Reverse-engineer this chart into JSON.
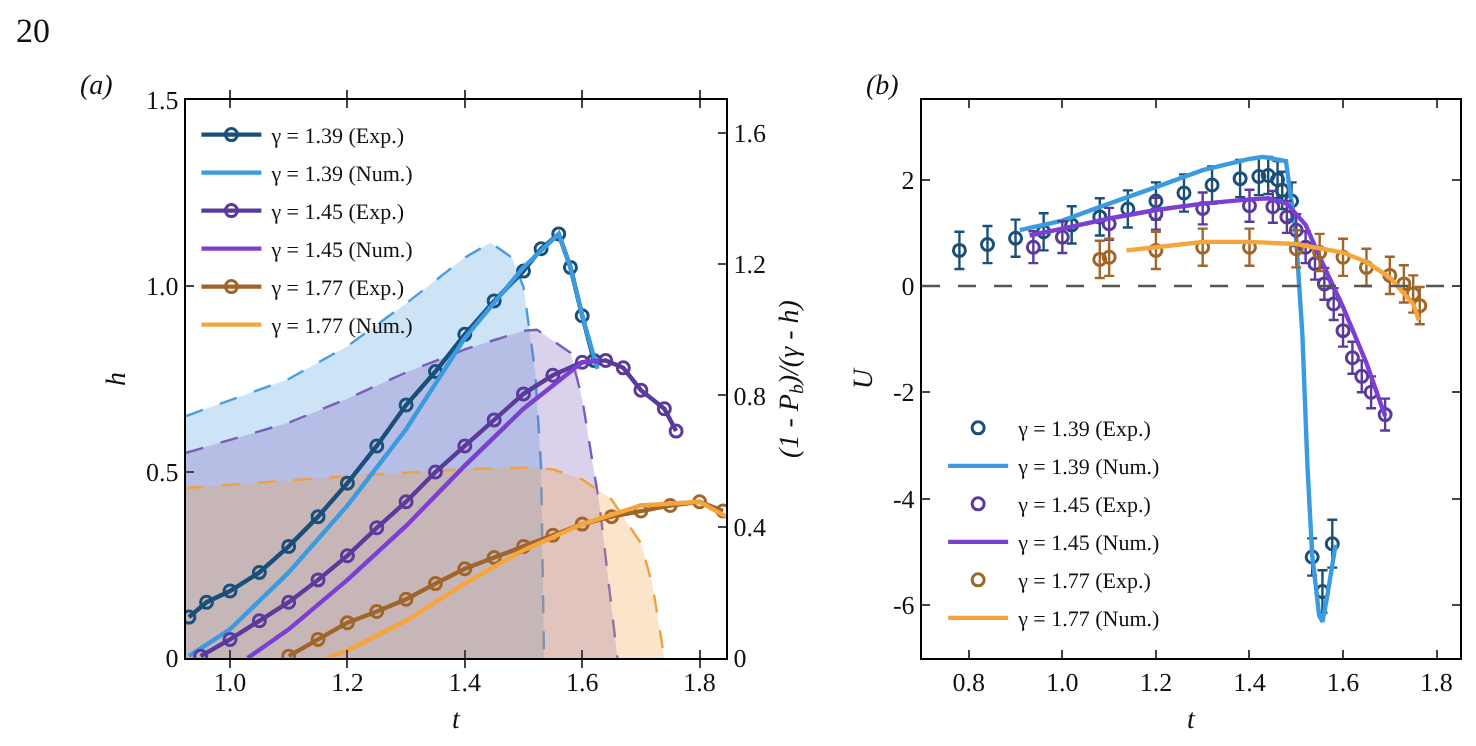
{
  "chart_data": [
    {
      "type": "line",
      "title": "(a)",
      "xlabel": "t",
      "ylabel": "h",
      "y2label": "(1 - P$_{b}$)/(γ - h)",
      "annotations": [
        "20"
      ],
      "legend": "top left",
      "grid": false,
      "xlim": [
        0.925,
        1.845
      ],
      "xticks": [
        {
          "value": 1,
          "label": "1.0"
        },
        1.2,
        1.4,
        1.6,
        1.8
      ],
      "ylim": [
        0,
        1.5
      ],
      "yticks": [
        0,
        0.5,
        {
          "value": 1,
          "label": "1.0"
        },
        1.5
      ],
      "y2lim": [
        0,
        1.7
      ],
      "y2ticks": [
        0,
        0.4,
        0.8,
        1.2,
        1.6
      ],
      "series": [
        {
          "type": "area",
          "axis": "y2",
          "line_style": "dashed",
          "marker": "none",
          "color": "#4a9de0",
          "x": [
            0.925,
            1.1,
            1.2,
            1.3,
            1.4,
            1.444,
            1.48,
            1.5,
            1.52,
            1.53,
            1.535
          ],
          "values": [
            0.737,
            0.85,
            0.95,
            1.08,
            1.22,
            1.265,
            1.22,
            1.13,
            0.87,
            0.58,
            0
          ]
        },
        {
          "type": "area",
          "axis": "y2",
          "line_style": "dashed",
          "marker": "none",
          "color": "#7a5cc0",
          "x": [
            0.925,
            1.1,
            1.2,
            1.3,
            1.4,
            1.5,
            1.523,
            1.58,
            1.6,
            1.63,
            1.66
          ],
          "values": [
            0.625,
            0.717,
            0.79,
            0.87,
            0.94,
            0.997,
            1.0,
            0.93,
            0.79,
            0.46,
            0
          ]
        },
        {
          "type": "area",
          "axis": "y2",
          "line_style": "dashed",
          "marker": "none",
          "color": "#f0a040",
          "x": [
            0.925,
            1.2,
            1.4,
            1.5,
            1.55,
            1.6,
            1.65,
            1.7,
            1.72,
            1.74
          ],
          "values": [
            0.518,
            0.554,
            0.575,
            0.58,
            0.575,
            0.544,
            0.483,
            0.35,
            0.22,
            0
          ]
        },
        {
          "name": "γ = 1.39 (Exp.)",
          "marker": "circle",
          "line_style": "solid",
          "color": "#1a4f7a",
          "x": [
            0.93,
            0.96,
            1.0,
            1.05,
            1.1,
            1.15,
            1.2,
            1.25,
            1.3,
            1.35,
            1.4,
            1.45,
            1.5,
            1.53,
            1.56,
            1.58,
            1.6,
            1.62
          ],
          "values": [
            0.11,
            0.15,
            0.18,
            0.23,
            0.3,
            0.38,
            0.47,
            0.57,
            0.68,
            0.77,
            0.87,
            0.96,
            1.04,
            1.1,
            1.14,
            1.05,
            0.92,
            0.8
          ]
        },
        {
          "name": "γ = 1.39 (Num.)",
          "marker": "none",
          "line_style": "solid",
          "color": "#3a9be0",
          "x": [
            0.93,
            1.0,
            1.1,
            1.2,
            1.3,
            1.4,
            1.5,
            1.56,
            1.58,
            1.6,
            1.626
          ],
          "values": [
            0.005,
            0.077,
            0.23,
            0.41,
            0.615,
            0.86,
            1.05,
            1.14,
            1.05,
            0.92,
            0.777
          ]
        },
        {
          "name": "γ = 1.45 (Exp.)",
          "marker": "circle",
          "line_style": "solid",
          "color": "#5a3a9a",
          "x": [
            0.95,
            1.0,
            1.05,
            1.1,
            1.15,
            1.2,
            1.25,
            1.3,
            1.35,
            1.4,
            1.45,
            1.5,
            1.55,
            1.6,
            1.64,
            1.67,
            1.7,
            1.74,
            1.76
          ],
          "values": [
            0.005,
            0.05,
            0.1,
            0.15,
            0.21,
            0.275,
            0.35,
            0.42,
            0.5,
            0.57,
            0.64,
            0.71,
            0.76,
            0.795,
            0.8,
            0.78,
            0.72,
            0.67,
            0.61
          ]
        },
        {
          "name": "γ = 1.45 (Num.)",
          "marker": "none",
          "line_style": "solid",
          "color": "#7b3fd4",
          "x": [
            1.03,
            1.1,
            1.2,
            1.3,
            1.4,
            1.5,
            1.6,
            1.63
          ],
          "values": [
            0,
            0.077,
            0.21,
            0.355,
            0.517,
            0.67,
            0.795,
            0.8
          ]
        },
        {
          "name": "γ = 1.77 (Exp.)",
          "marker": "circle",
          "line_style": "solid",
          "color": "#a0652a",
          "x": [
            1.1,
            1.15,
            1.2,
            1.25,
            1.3,
            1.35,
            1.4,
            1.45,
            1.5,
            1.55,
            1.6,
            1.65,
            1.7,
            1.75,
            1.8,
            1.84
          ],
          "values": [
            0.005,
            0.05,
            0.095,
            0.125,
            0.158,
            0.2,
            0.24,
            0.27,
            0.3,
            0.33,
            0.36,
            0.38,
            0.395,
            0.41,
            0.42,
            0.395
          ]
        },
        {
          "name": "γ = 1.77 (Num.)",
          "marker": "none",
          "line_style": "solid",
          "color": "#f5a53a",
          "x": [
            1.165,
            1.2,
            1.3,
            1.4,
            1.5,
            1.6,
            1.7,
            1.8,
            1.845
          ],
          "values": [
            0,
            0.02,
            0.1,
            0.2,
            0.29,
            0.36,
            0.41,
            0.42,
            0.38
          ]
        }
      ]
    },
    {
      "type": "line",
      "title": "(b)",
      "xlabel": "t",
      "ylabel": "U",
      "legend": "bottom left",
      "grid": false,
      "xlim": [
        0.7,
        1.85
      ],
      "xticks": [
        0.8,
        {
          "value": 1,
          "label": "1.0"
        },
        1.2,
        1.4,
        1.6,
        1.8
      ],
      "ylim": [
        -7,
        3.5
      ],
      "yticks": [
        -6,
        -4,
        -2,
        0,
        2
      ],
      "ref_lines": [
        {
          "axis": "y",
          "value": 0,
          "color": "#555555",
          "line_style": "dashed"
        }
      ],
      "series": [
        {
          "type": "scatter",
          "name": "γ = 1.39 (Exp.)",
          "marker": "circle",
          "color": "#1a4f7a",
          "x": [
            0.78,
            0.84,
            0.9,
            0.96,
            1.02,
            1.08,
            1.14,
            1.2,
            1.26,
            1.32,
            1.38,
            1.42,
            1.44,
            1.46,
            1.47,
            1.49,
            1.534,
            1.556,
            1.577
          ],
          "values": [
            0.67,
            0.78,
            0.9,
            1.02,
            1.15,
            1.3,
            1.45,
            1.6,
            1.75,
            1.9,
            2.02,
            2.06,
            2.08,
            2.0,
            1.8,
            1.6,
            -5.1,
            -5.75,
            -4.85
          ],
          "errors": [
            0.35,
            0.35,
            0.35,
            0.35,
            0.35,
            0.35,
            0.35,
            0.35,
            0.35,
            0.35,
            0.35,
            0.35,
            0.35,
            0.35,
            0.35,
            0.35,
            0.35,
            0.4,
            0.45
          ]
        },
        {
          "name": "γ = 1.39 (Num.)",
          "marker": "none",
          "line_style": "solid",
          "color": "#3a9be0",
          "x": [
            0.909,
            1.0,
            1.1,
            1.2,
            1.3,
            1.4,
            1.428,
            1.478,
            1.499,
            1.513,
            1.524,
            1.534,
            1.549,
            1.556,
            1.567,
            1.584
          ],
          "values": [
            1.05,
            1.23,
            1.55,
            1.86,
            2.18,
            2.39,
            2.43,
            2.35,
            1.0,
            -0.9,
            -3.4,
            -5.06,
            -6.2,
            -6.32,
            -5.8,
            -4.87
          ]
        },
        {
          "type": "scatter",
          "name": "γ = 1.45 (Exp.)",
          "marker": "circle",
          "color": "#5a3a9a",
          "x": [
            0.938,
            1.0,
            1.1,
            1.2,
            1.3,
            1.4,
            1.45,
            1.48,
            1.5,
            1.52,
            1.54,
            1.56,
            1.58,
            1.6,
            1.62,
            1.64,
            1.66,
            1.69
          ],
          "values": [
            0.73,
            0.92,
            1.17,
            1.36,
            1.46,
            1.51,
            1.49,
            1.3,
            1.05,
            0.73,
            0.42,
            0.04,
            -0.34,
            -0.84,
            -1.35,
            -1.7,
            -2.0,
            -2.42
          ],
          "errors": [
            0.3,
            0.3,
            0.3,
            0.3,
            0.3,
            0.3,
            0.3,
            0.3,
            0.3,
            0.3,
            0.3,
            0.3,
            0.3,
            0.3,
            0.3,
            0.3,
            0.3,
            0.3
          ]
        },
        {
          "name": "γ = 1.45 (Num.)",
          "marker": "none",
          "line_style": "solid",
          "color": "#7b3fd4",
          "x": [
            0.93,
            1.0,
            1.1,
            1.2,
            1.3,
            1.4,
            1.44,
            1.48,
            1.52,
            1.55,
            1.6,
            1.65,
            1.69
          ],
          "values": [
            0.95,
            1.08,
            1.27,
            1.43,
            1.55,
            1.63,
            1.65,
            1.55,
            1.15,
            0.55,
            -0.4,
            -1.45,
            -2.45
          ]
        },
        {
          "type": "scatter",
          "name": "γ = 1.77 (Exp.)",
          "marker": "circle",
          "color": "#a0652a",
          "x": [
            1.08,
            1.1,
            1.2,
            1.3,
            1.4,
            1.5,
            1.55,
            1.6,
            1.65,
            1.7,
            1.73,
            1.75,
            1.764
          ],
          "values": [
            0.5,
            0.54,
            0.67,
            0.73,
            0.73,
            0.7,
            0.63,
            0.54,
            0.35,
            0.2,
            0.04,
            -0.15,
            -0.37
          ],
          "errors": [
            0.35,
            0.35,
            0.35,
            0.35,
            0.35,
            0.35,
            0.35,
            0.35,
            0.35,
            0.35,
            0.35,
            0.35,
            0.35
          ]
        },
        {
          "name": "γ = 1.77 (Num.)",
          "marker": "none",
          "line_style": "solid",
          "color": "#f5a53a",
          "x": [
            1.137,
            1.2,
            1.3,
            1.4,
            1.5,
            1.6,
            1.65,
            1.7,
            1.75,
            1.762
          ],
          "values": [
            0.67,
            0.73,
            0.83,
            0.83,
            0.79,
            0.63,
            0.45,
            0.16,
            -0.34,
            -0.65
          ]
        }
      ]
    }
  ]
}
